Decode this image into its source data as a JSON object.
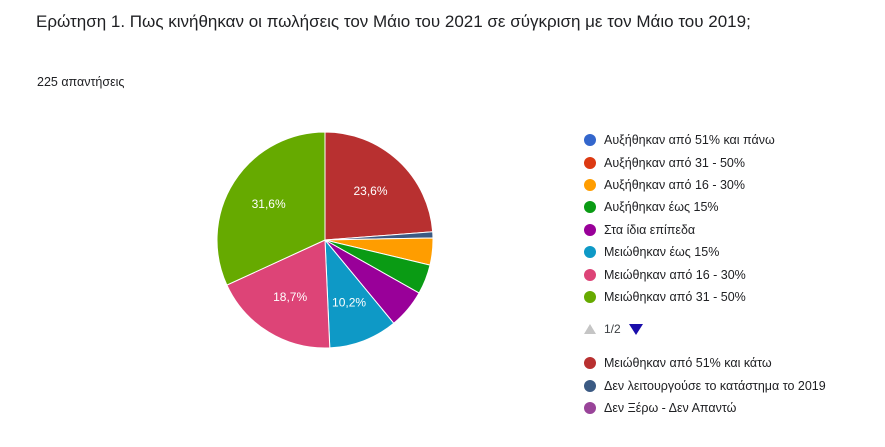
{
  "question": "Ερώτηση 1. Πως κινήθηκαν οι πωλήσεις τον Μάιο του 2021 σε σύγκριση με τον Μάιο του 2019;",
  "responses": "225 απαντήσεις",
  "pager": {
    "text": "1/2",
    "up_icon": "triangle-up-icon",
    "down_icon": "triangle-down-icon"
  },
  "chart_data": {
    "type": "pie",
    "categories": [
      "Μειώθηκαν από 51% και κάτω",
      "Δεν λειτουργούσε το κατάστημα το 2019",
      "Αυξήθηκαν από 16 - 30%",
      "Αυξήθηκαν έως 15%",
      "Στα ίδια επίπεδα",
      "Μειώθηκαν έως 15%",
      "Μειώθηκαν από 16 - 30%",
      "Μειώθηκαν από 31 - 50%",
      "Αυξήθηκαν από 51% και πάνω",
      "Αυξήθηκαν από 31 - 50%"
    ],
    "values": [
      23.6,
      0.9,
      4.0,
      4.4,
      5.8,
      10.2,
      18.7,
      31.6,
      0,
      0
    ],
    "colors": [
      "#b83030",
      "#3b5a83",
      "#ff9d00",
      "#0a9b14",
      "#990099",
      "#0e99c6",
      "#dd4477",
      "#66aa00",
      "#3366cc",
      "#dc3912"
    ],
    "labels_shown": [
      "23,6%",
      "",
      "",
      "",
      "",
      "10,2%",
      "18,7%",
      "31,6%",
      "",
      ""
    ]
  },
  "legend": {
    "page1": [
      {
        "label": "Αυξήθηκαν από 51% και πάνω",
        "color": "#3366cc"
      },
      {
        "label": "Αυξήθηκαν από 31 - 50%",
        "color": "#dc3912"
      },
      {
        "label": "Αυξήθηκαν από 16 - 30%",
        "color": "#ff9d00"
      },
      {
        "label": "Αυξήθηκαν έως 15%",
        "color": "#0a9b14"
      },
      {
        "label": "Στα ίδια επίπεδα",
        "color": "#990099"
      },
      {
        "label": "Μειώθηκαν έως 15%",
        "color": "#0e99c6"
      },
      {
        "label": "Μειώθηκαν από 16 - 30%",
        "color": "#dd4477"
      },
      {
        "label": "Μειώθηκαν από 31 - 50%",
        "color": "#66aa00"
      }
    ],
    "page2": [
      {
        "label": "Μειώθηκαν από 51% και κάτω",
        "color": "#b83030"
      },
      {
        "label": "Δεν λειτουργούσε το κατάστημα το 2019",
        "color": "#3b5a83"
      },
      {
        "label": "Δεν Ξέρω - Δεν Απαντώ",
        "color": "#994499"
      }
    ]
  }
}
